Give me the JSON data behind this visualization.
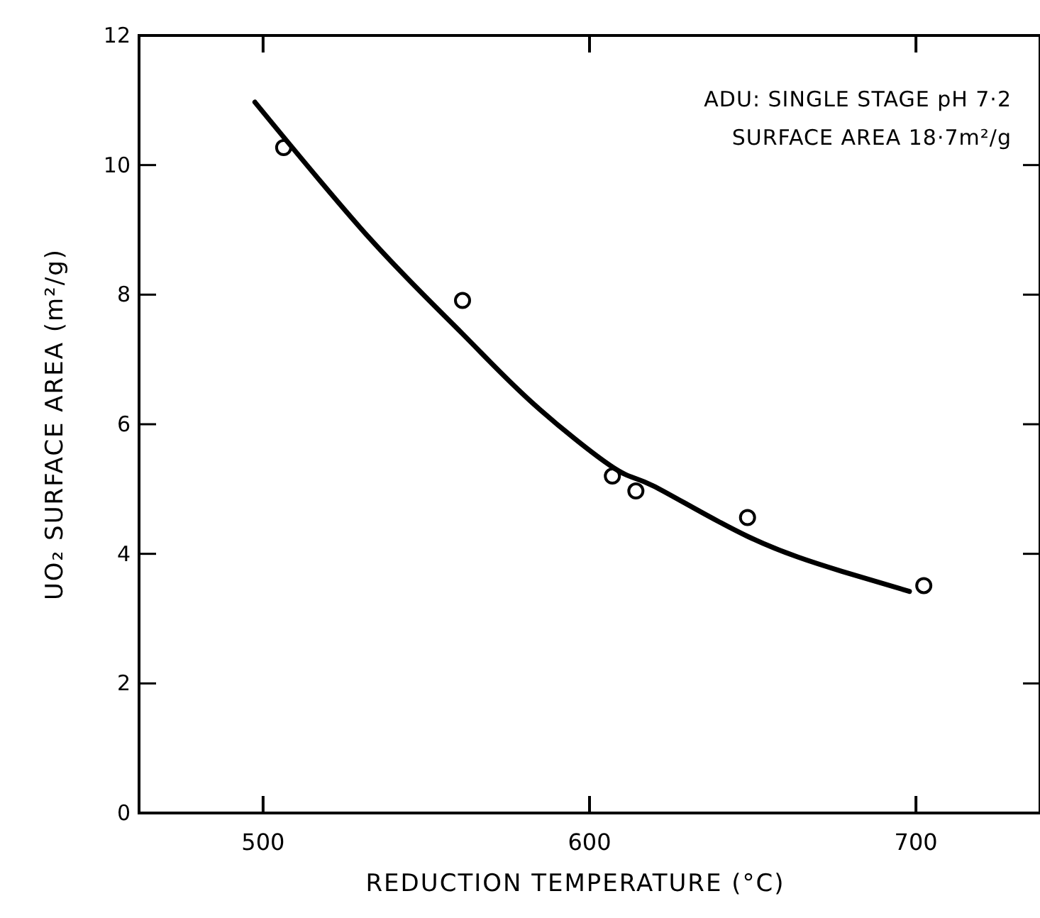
{
  "chart_data": {
    "type": "scatter",
    "xlabel": "REDUCTION TEMPERATURE (°C)",
    "ylabel": "UO₂ SURFACE AREA (m²/g)",
    "annotations": [
      "ADU: SINGLE STAGE pH 7·2",
      "SURFACE AREA 18·7m²/g"
    ],
    "xlim": [
      462,
      738
    ],
    "xticks": [
      500,
      600,
      700
    ],
    "ylim": [
      0,
      12
    ],
    "yticks": [
      0,
      2,
      4,
      6,
      8,
      10,
      12
    ],
    "grid": false,
    "series": [
      {
        "color": "#000000",
        "marker": "circle",
        "x": [
          506.3,
          561.1,
          607,
          614.2,
          648.4,
          702.4
        ],
        "values": [
          10.27,
          7.91,
          5.2,
          4.97,
          4.56,
          3.51
        ]
      },
      {
        "type": "line",
        "color": "#000000",
        "line_style": "solid",
        "x": [
          497.5,
          533,
          561,
          582.5,
          607,
          619.5,
          648.4,
          677.3,
          698
        ],
        "values": [
          10.97,
          8.85,
          7.4,
          6.33,
          5.34,
          5.05,
          4.27,
          3.73,
          3.42
        ]
      }
    ]
  }
}
